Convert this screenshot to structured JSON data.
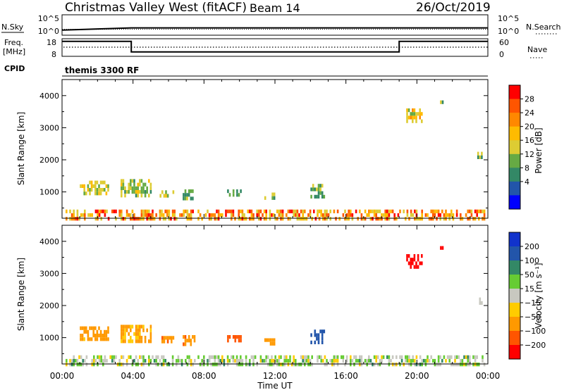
{
  "header": {
    "title": "Christmas Valley West (fitACF)",
    "beam": "Beam 14",
    "date": "26/Oct/2019"
  },
  "strips": {
    "nsky_label": "N.Sky",
    "nsearch_label": "N.Search",
    "freq_label_line1": "Freq.",
    "freq_label_line2": "[MHz]",
    "nave_label": "Nave",
    "cpid_label": "CPID",
    "cpid_value": "themis 3300 RF",
    "noise_ticks_left": [
      "10^5",
      "10^0"
    ],
    "noise_ticks_right": [
      "10^5",
      "10^0"
    ],
    "freq_ticks": [
      "18",
      "8"
    ],
    "nave_ticks": [
      "60",
      "0"
    ]
  },
  "power_colorbar": {
    "label": "Power [dB]",
    "ticks": [
      "28",
      "24",
      "20",
      "16",
      "12",
      "8",
      "4"
    ],
    "colors": [
      "#ff0000",
      "#ff5500",
      "#ff8800",
      "#ffbb00",
      "#ddcc33",
      "#66aa44",
      "#338866",
      "#2255aa",
      "#0000ff"
    ]
  },
  "velocity_colorbar": {
    "label": "Velocity [m s⁻¹]",
    "ticks": [
      "200",
      "100",
      "50",
      "15",
      "−15",
      "−50",
      "−100",
      "−200"
    ],
    "colors": [
      "#1133cc",
      "#2255aa",
      "#338866",
      "#66cc33",
      "#c8c8c0",
      "#ffcc00",
      "#ff9900",
      "#ff5500",
      "#ff0000"
    ]
  },
  "x_axis": {
    "label": "Time UT",
    "ticks": [
      "00:00",
      "04:00",
      "08:00",
      "12:00",
      "16:00",
      "20:00",
      "00:00"
    ]
  },
  "chart_data": [
    {
      "type": "line",
      "title": "Freq.",
      "ylabel": "[MHz]",
      "ylim": [
        8,
        18
      ],
      "x": [
        0,
        3.9,
        3.9,
        19.0,
        19.0,
        24
      ],
      "y": [
        16.5,
        16.5,
        10.5,
        10.5,
        16.5,
        16.5
      ]
    },
    {
      "type": "line",
      "title": "N.Sky",
      "x": [
        0,
        3.9,
        24
      ],
      "y": [
        0.4,
        0.8,
        0.8
      ]
    },
    {
      "type": "heatmap",
      "title": "Power [dB]",
      "ylabel": "Slant Range [km]",
      "xlabel": "Time UT",
      "ylim": [
        180,
        4500
      ],
      "yticks": [
        1000,
        2000,
        3000,
        4000
      ],
      "ylabels": [
        "1000",
        "2000",
        "3000",
        "4000"
      ],
      "xlim": [
        0,
        24
      ],
      "clusters": [
        {
          "t0": 1.0,
          "t1": 2.6,
          "r0": 950,
          "r1": 1350,
          "power": 12
        },
        {
          "t0": 3.3,
          "t1": 5.0,
          "r0": 850,
          "r1": 1400,
          "power": 10
        },
        {
          "t0": 5.5,
          "t1": 6.3,
          "r0": 900,
          "r1": 1050,
          "power": 10
        },
        {
          "t0": 6.8,
          "t1": 7.5,
          "r0": 850,
          "r1": 1080,
          "power": 8
        },
        {
          "t0": 9.3,
          "t1": 10.1,
          "r0": 880,
          "r1": 1080,
          "power": 8
        },
        {
          "t0": 11.4,
          "t1": 12.0,
          "r0": 850,
          "r1": 980,
          "power": 8
        },
        {
          "t0": 14.0,
          "t1": 14.8,
          "r0": 900,
          "r1": 1250,
          "power": 8
        },
        {
          "t0": 19.4,
          "t1": 20.3,
          "r0": 3150,
          "r1": 3600,
          "power": 14
        },
        {
          "t0": 21.3,
          "t1": 21.5,
          "r0": 3750,
          "r1": 3850,
          "power": 10
        },
        {
          "t0": 23.4,
          "t1": 23.7,
          "r0": 2050,
          "r1": 2250,
          "power": 8
        },
        {
          "t0": 0.2,
          "t1": 23.8,
          "r0": 200,
          "r1": 450,
          "power": 16
        }
      ]
    },
    {
      "type": "heatmap",
      "title": "Velocity [m s⁻¹]",
      "ylabel": "Slant Range [km]",
      "xlabel": "Time UT",
      "ylim": [
        180,
        4500
      ],
      "yticks": [
        1000,
        2000,
        3000,
        4000
      ],
      "ylabels": [
        "1000",
        "2000",
        "3000",
        "4000"
      ],
      "xlim": [
        0,
        24
      ],
      "clusters": [
        {
          "t0": 1.0,
          "t1": 2.6,
          "r0": 950,
          "r1": 1350,
          "velocity": -50
        },
        {
          "t0": 3.3,
          "t1": 5.0,
          "r0": 850,
          "r1": 1400,
          "velocity": -40
        },
        {
          "t0": 5.5,
          "t1": 6.3,
          "r0": 900,
          "r1": 1050,
          "velocity": -60
        },
        {
          "t0": 6.8,
          "t1": 7.5,
          "r0": 850,
          "r1": 1080,
          "velocity": -60
        },
        {
          "t0": 9.3,
          "t1": 10.1,
          "r0": 880,
          "r1": 1080,
          "velocity": -120
        },
        {
          "t0": 11.4,
          "t1": 12.0,
          "r0": 850,
          "r1": 980,
          "velocity": -60
        },
        {
          "t0": 14.0,
          "t1": 14.8,
          "r0": 900,
          "r1": 1250,
          "velocity": 120
        },
        {
          "t0": 19.4,
          "t1": 20.3,
          "r0": 3150,
          "r1": 3600,
          "velocity": -220
        },
        {
          "t0": 21.3,
          "t1": 21.5,
          "r0": 3750,
          "r1": 3850,
          "velocity": -150
        },
        {
          "t0": 23.4,
          "t1": 23.7,
          "r0": 2050,
          "r1": 2250,
          "velocity": 0
        },
        {
          "t0": 0.2,
          "t1": 23.8,
          "r0": 200,
          "r1": 450,
          "velocity": 20
        }
      ]
    }
  ]
}
